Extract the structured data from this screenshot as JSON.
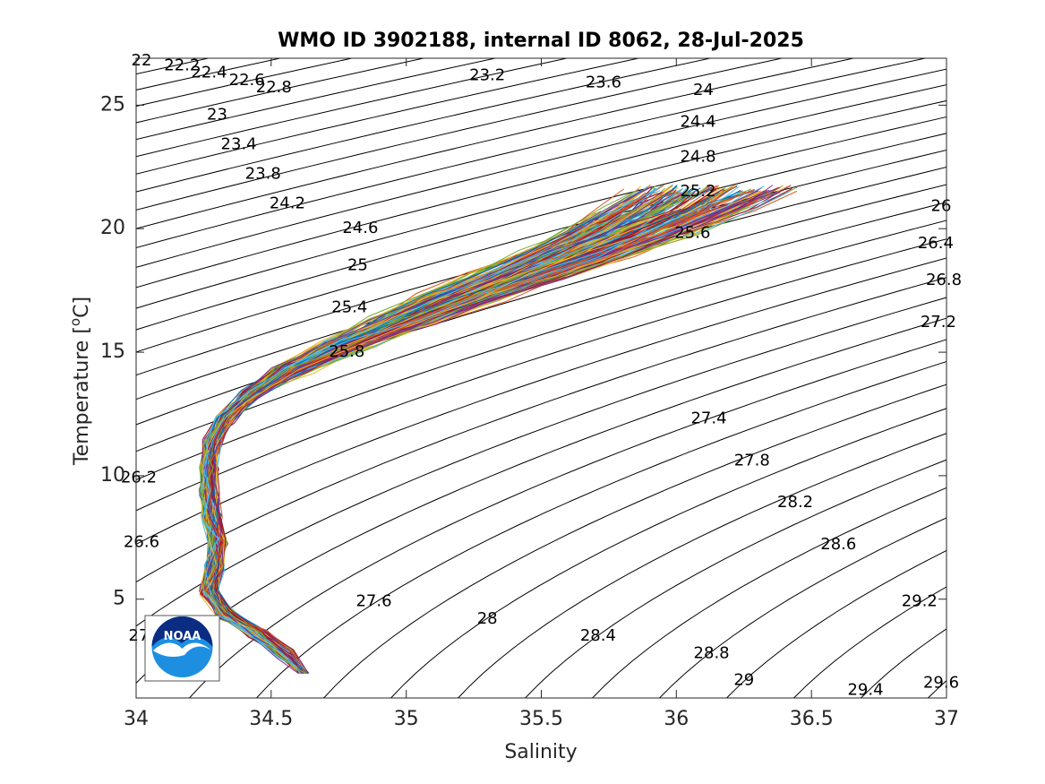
{
  "chart_data": {
    "type": "line",
    "title": "WMO ID 3902188, internal ID 8062, 28-Jul-2025",
    "xlabel": "Salinity",
    "ylabel": "Temperature [",
    "ylabel_sup": "o",
    "ylabel_end": "C]",
    "xlim": [
      34,
      37
    ],
    "ylim": [
      1,
      26.9
    ],
    "xticks": [
      "34",
      "34.5",
      "35",
      "35.5",
      "36",
      "36.5",
      "37"
    ],
    "xtick_values": [
      34,
      34.5,
      35,
      35.5,
      36,
      36.5,
      37
    ],
    "yticks": [
      "5",
      "10",
      "15",
      "20",
      "25"
    ],
    "ytick_values": [
      5,
      10,
      15,
      20,
      25
    ],
    "grid": false,
    "legend": "none",
    "logo": "NOAA",
    "density_contours": {
      "levels_from": 22,
      "levels_to": 30,
      "level_step": 0.2,
      "color": "#000000",
      "labels": [
        {
          "text": "22",
          "s": 34.02,
          "t": 26.8
        },
        {
          "text": "22.2",
          "s": 34.17,
          "t": 26.6
        },
        {
          "text": "22.4",
          "s": 34.27,
          "t": 26.3
        },
        {
          "text": "22.6",
          "s": 34.41,
          "t": 26.0
        },
        {
          "text": "22.8",
          "s": 34.51,
          "t": 25.7
        },
        {
          "text": "23",
          "s": 34.3,
          "t": 24.6
        },
        {
          "text": "23.2",
          "s": 35.3,
          "t": 26.2
        },
        {
          "text": "23.4",
          "s": 34.38,
          "t": 23.4
        },
        {
          "text": "23.6",
          "s": 35.73,
          "t": 25.9
        },
        {
          "text": "23.8",
          "s": 34.47,
          "t": 22.2
        },
        {
          "text": "24",
          "s": 36.1,
          "t": 25.6
        },
        {
          "text": "24.2",
          "s": 34.56,
          "t": 21.0
        },
        {
          "text": "24.4",
          "s": 36.08,
          "t": 24.3
        },
        {
          "text": "24.6",
          "s": 34.83,
          "t": 20.0
        },
        {
          "text": "24.8",
          "s": 36.08,
          "t": 22.9
        },
        {
          "text": "25",
          "s": 34.82,
          "t": 18.5
        },
        {
          "text": "25.2",
          "s": 36.08,
          "t": 21.5
        },
        {
          "text": "25.4",
          "s": 34.79,
          "t": 16.8
        },
        {
          "text": "25.6",
          "s": 36.06,
          "t": 19.8
        },
        {
          "text": "25.8",
          "s": 34.78,
          "t": 15.0
        },
        {
          "text": "26",
          "s": 36.98,
          "t": 20.9
        },
        {
          "text": "26.2",
          "s": 34.01,
          "t": 9.9
        },
        {
          "text": "26.4",
          "s": 36.96,
          "t": 19.4
        },
        {
          "text": "26.6",
          "s": 34.02,
          "t": 7.3
        },
        {
          "text": "26.8",
          "s": 36.99,
          "t": 17.9
        },
        {
          "text": "27",
          "s": 34.01,
          "t": 3.5
        },
        {
          "text": "27.2",
          "s": 36.97,
          "t": 16.2
        },
        {
          "text": "27.4",
          "s": 36.12,
          "t": 12.3
        },
        {
          "text": "27.6",
          "s": 34.88,
          "t": 4.9
        },
        {
          "text": "27.8",
          "s": 36.28,
          "t": 10.6
        },
        {
          "text": "28",
          "s": 35.3,
          "t": 4.2
        },
        {
          "text": "28.2",
          "s": 36.44,
          "t": 8.9
        },
        {
          "text": "28.4",
          "s": 35.71,
          "t": 3.5
        },
        {
          "text": "28.6",
          "s": 36.6,
          "t": 7.2
        },
        {
          "text": "28.8",
          "s": 36.13,
          "t": 2.8
        },
        {
          "text": "29",
          "s": 36.25,
          "t": 1.7
        },
        {
          "text": "29.2",
          "s": 36.9,
          "t": 4.9
        },
        {
          "text": "29.4",
          "s": 36.7,
          "t": 1.3
        },
        {
          "text": "29.6",
          "s": 36.98,
          "t": 1.6
        }
      ]
    },
    "profiles": {
      "count": 230,
      "color_cycle": [
        "#0072BD",
        "#D95319",
        "#EDB120",
        "#7E2F8E",
        "#77AC30",
        "#4DBEEE",
        "#A2142F"
      ],
      "mean_curve": [
        {
          "s": 34.64,
          "t": 2.0
        },
        {
          "s": 34.55,
          "t": 2.8
        },
        {
          "s": 34.45,
          "t": 3.6
        },
        {
          "s": 34.33,
          "t": 4.4
        },
        {
          "s": 34.27,
          "t": 5.3
        },
        {
          "s": 34.29,
          "t": 6.3
        },
        {
          "s": 34.3,
          "t": 7.3
        },
        {
          "s": 34.28,
          "t": 8.3
        },
        {
          "s": 34.27,
          "t": 9.3
        },
        {
          "s": 34.27,
          "t": 10.3
        },
        {
          "s": 34.28,
          "t": 11.3
        },
        {
          "s": 34.33,
          "t": 12.3
        },
        {
          "s": 34.43,
          "t": 13.3
        },
        {
          "s": 34.58,
          "t": 14.3
        },
        {
          "s": 34.78,
          "t": 15.3
        },
        {
          "s": 35.0,
          "t": 16.3
        },
        {
          "s": 35.2,
          "t": 17.2
        },
        {
          "s": 35.42,
          "t": 18.1
        },
        {
          "s": 35.63,
          "t": 19.0
        },
        {
          "s": 35.82,
          "t": 19.9
        },
        {
          "s": 36.0,
          "t": 20.8
        },
        {
          "s": 36.13,
          "t": 21.6
        }
      ]
    }
  }
}
